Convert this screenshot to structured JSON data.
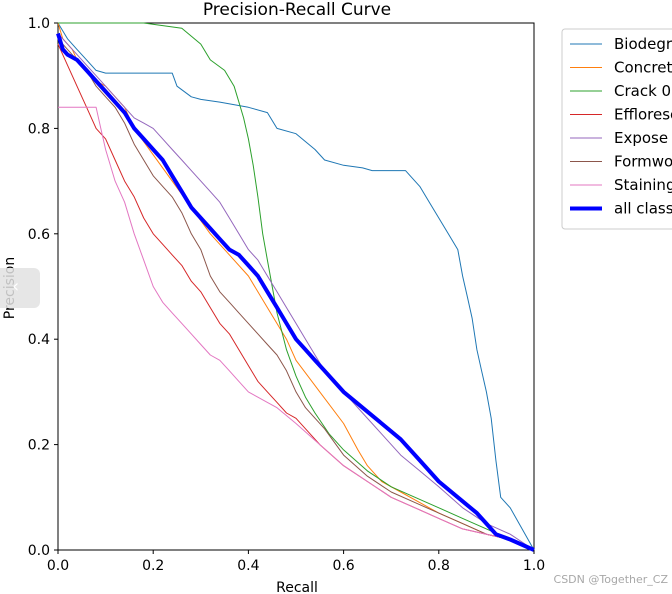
{
  "chart_data": {
    "type": "line",
    "title": "Precision-Recall Curve",
    "xlabel": "Recall",
    "ylabel": "Precision",
    "xlim": [
      0,
      1
    ],
    "ylim": [
      0,
      1
    ],
    "xticks": [
      "0.0",
      "0.2",
      "0.4",
      "0.6",
      "0.8",
      "1.0"
    ],
    "yticks": [
      "0.0",
      "0.2",
      "0.4",
      "0.6",
      "0.8",
      "1.0"
    ],
    "legend_position": "upper-right-outside",
    "series": [
      {
        "name": "Biodegr",
        "color": "#1f77b4",
        "width": 1,
        "x": [
          0,
          0.02,
          0.04,
          0.06,
          0.08,
          0.1,
          0.12,
          0.24,
          0.25,
          0.28,
          0.3,
          0.34,
          0.4,
          0.44,
          0.46,
          0.5,
          0.54,
          0.56,
          0.6,
          0.64,
          0.66,
          0.7,
          0.73,
          0.74,
          0.76,
          0.78,
          0.8,
          0.82,
          0.84,
          0.85,
          0.86,
          0.87,
          0.88,
          0.89,
          0.9,
          0.91,
          0.92,
          0.93,
          0.95,
          1.0
        ],
        "y": [
          1.0,
          0.97,
          0.95,
          0.93,
          0.91,
          0.905,
          0.905,
          0.905,
          0.88,
          0.86,
          0.855,
          0.85,
          0.84,
          0.83,
          0.8,
          0.79,
          0.76,
          0.74,
          0.73,
          0.725,
          0.72,
          0.72,
          0.72,
          0.71,
          0.69,
          0.66,
          0.63,
          0.6,
          0.57,
          0.52,
          0.48,
          0.44,
          0.38,
          0.34,
          0.3,
          0.25,
          0.17,
          0.1,
          0.08,
          0.0
        ]
      },
      {
        "name": "Concret",
        "color": "#ff7f0e",
        "width": 1,
        "x": [
          0,
          0.01,
          0.03,
          0.04,
          0.06,
          0.08,
          0.1,
          0.14,
          0.16,
          0.2,
          0.24,
          0.28,
          0.32,
          0.36,
          0.4,
          0.44,
          0.48,
          0.5,
          0.55,
          0.6,
          0.63,
          0.65,
          0.68,
          0.72,
          0.76,
          0.8,
          0.85,
          0.9,
          0.95,
          1.0
        ],
        "y": [
          1.0,
          0.97,
          0.95,
          0.93,
          0.91,
          0.89,
          0.88,
          0.84,
          0.8,
          0.75,
          0.7,
          0.65,
          0.6,
          0.56,
          0.52,
          0.46,
          0.4,
          0.36,
          0.3,
          0.24,
          0.19,
          0.16,
          0.13,
          0.11,
          0.09,
          0.07,
          0.05,
          0.03,
          0.02,
          0.0
        ]
      },
      {
        "name": "Crack 0",
        "color": "#2ca02c",
        "width": 1,
        "x": [
          0,
          0.18,
          0.26,
          0.3,
          0.32,
          0.35,
          0.37,
          0.38,
          0.39,
          0.4,
          0.41,
          0.42,
          0.43,
          0.44,
          0.45,
          0.46,
          0.48,
          0.5,
          0.52,
          0.54,
          0.57,
          0.6,
          0.65,
          0.7,
          0.75,
          0.8,
          0.85,
          0.9,
          0.95,
          1.0
        ],
        "y": [
          1.0,
          1.0,
          0.99,
          0.96,
          0.93,
          0.91,
          0.88,
          0.85,
          0.82,
          0.78,
          0.73,
          0.67,
          0.6,
          0.55,
          0.5,
          0.45,
          0.38,
          0.33,
          0.29,
          0.26,
          0.22,
          0.19,
          0.15,
          0.12,
          0.1,
          0.08,
          0.06,
          0.04,
          0.02,
          0.0
        ]
      },
      {
        "name": "Effloresc",
        "color": "#d62728",
        "width": 1,
        "x": [
          0,
          0.02,
          0.04,
          0.06,
          0.08,
          0.1,
          0.12,
          0.14,
          0.16,
          0.18,
          0.2,
          0.22,
          0.24,
          0.26,
          0.28,
          0.3,
          0.32,
          0.34,
          0.36,
          0.38,
          0.4,
          0.42,
          0.44,
          0.46,
          0.48,
          0.5,
          0.55,
          0.6,
          0.65,
          0.7,
          0.75,
          0.8,
          0.85,
          0.9,
          0.95,
          1.0
        ],
        "y": [
          0.96,
          0.92,
          0.88,
          0.84,
          0.8,
          0.78,
          0.74,
          0.7,
          0.67,
          0.63,
          0.6,
          0.58,
          0.56,
          0.54,
          0.51,
          0.49,
          0.46,
          0.43,
          0.41,
          0.38,
          0.35,
          0.32,
          0.3,
          0.28,
          0.26,
          0.25,
          0.2,
          0.16,
          0.13,
          0.1,
          0.08,
          0.06,
          0.04,
          0.03,
          0.02,
          0.0
        ]
      },
      {
        "name": "Expose",
        "color": "#9467bd",
        "width": 1,
        "x": [
          0,
          0.02,
          0.04,
          0.06,
          0.08,
          0.1,
          0.12,
          0.14,
          0.16,
          0.18,
          0.2,
          0.22,
          0.24,
          0.26,
          0.28,
          0.3,
          0.32,
          0.34,
          0.36,
          0.38,
          0.4,
          0.42,
          0.44,
          0.46,
          0.48,
          0.5,
          0.52,
          0.54,
          0.56,
          0.6,
          0.64,
          0.68,
          0.72,
          0.76,
          0.8,
          0.85,
          0.9,
          0.95,
          1.0
        ],
        "y": [
          0.98,
          0.96,
          0.94,
          0.92,
          0.9,
          0.88,
          0.86,
          0.84,
          0.82,
          0.81,
          0.8,
          0.78,
          0.76,
          0.74,
          0.72,
          0.7,
          0.68,
          0.66,
          0.63,
          0.6,
          0.57,
          0.55,
          0.52,
          0.49,
          0.46,
          0.43,
          0.4,
          0.37,
          0.34,
          0.3,
          0.26,
          0.22,
          0.18,
          0.15,
          0.12,
          0.08,
          0.05,
          0.03,
          0.0
        ]
      },
      {
        "name": "Formwo",
        "color": "#8c564b",
        "width": 1,
        "x": [
          0,
          0.02,
          0.04,
          0.06,
          0.08,
          0.1,
          0.12,
          0.14,
          0.16,
          0.18,
          0.2,
          0.22,
          0.24,
          0.26,
          0.28,
          0.3,
          0.32,
          0.34,
          0.36,
          0.38,
          0.4,
          0.42,
          0.44,
          0.46,
          0.48,
          0.5,
          0.52,
          0.56,
          0.6,
          0.65,
          0.7,
          0.75,
          0.8,
          0.85,
          0.9,
          0.95,
          1.0
        ],
        "y": [
          0.97,
          0.95,
          0.93,
          0.91,
          0.88,
          0.86,
          0.84,
          0.81,
          0.77,
          0.74,
          0.71,
          0.69,
          0.67,
          0.64,
          0.6,
          0.57,
          0.52,
          0.49,
          0.47,
          0.45,
          0.43,
          0.41,
          0.39,
          0.37,
          0.34,
          0.3,
          0.27,
          0.23,
          0.18,
          0.14,
          0.11,
          0.09,
          0.07,
          0.05,
          0.03,
          0.02,
          0.0
        ]
      },
      {
        "name": "Staining",
        "color": "#e377c2",
        "width": 1,
        "x": [
          0,
          0.05,
          0.08,
          0.09,
          0.1,
          0.12,
          0.14,
          0.16,
          0.18,
          0.2,
          0.22,
          0.24,
          0.26,
          0.28,
          0.3,
          0.32,
          0.34,
          0.36,
          0.38,
          0.4,
          0.42,
          0.44,
          0.46,
          0.5,
          0.55,
          0.6,
          0.65,
          0.7,
          0.75,
          0.8,
          0.85,
          0.9,
          0.95,
          1.0
        ],
        "y": [
          0.84,
          0.84,
          0.84,
          0.8,
          0.76,
          0.7,
          0.66,
          0.6,
          0.55,
          0.5,
          0.47,
          0.45,
          0.43,
          0.41,
          0.39,
          0.37,
          0.36,
          0.34,
          0.32,
          0.3,
          0.29,
          0.28,
          0.27,
          0.24,
          0.2,
          0.16,
          0.13,
          0.1,
          0.08,
          0.06,
          0.04,
          0.03,
          0.02,
          0.0
        ]
      },
      {
        "name": "all class",
        "color": "#0000ff",
        "width": 4,
        "x": [
          0,
          0.01,
          0.02,
          0.04,
          0.06,
          0.08,
          0.1,
          0.12,
          0.14,
          0.16,
          0.18,
          0.2,
          0.22,
          0.24,
          0.26,
          0.28,
          0.3,
          0.32,
          0.34,
          0.36,
          0.38,
          0.4,
          0.42,
          0.44,
          0.46,
          0.48,
          0.5,
          0.52,
          0.54,
          0.56,
          0.6,
          0.64,
          0.68,
          0.72,
          0.76,
          0.8,
          0.84,
          0.88,
          0.9,
          0.92,
          0.95,
          1.0
        ],
        "y": [
          0.98,
          0.95,
          0.94,
          0.93,
          0.91,
          0.89,
          0.87,
          0.85,
          0.83,
          0.8,
          0.78,
          0.76,
          0.74,
          0.71,
          0.68,
          0.65,
          0.63,
          0.61,
          0.59,
          0.57,
          0.56,
          0.54,
          0.52,
          0.49,
          0.46,
          0.43,
          0.4,
          0.38,
          0.36,
          0.34,
          0.3,
          0.27,
          0.24,
          0.21,
          0.17,
          0.13,
          0.1,
          0.07,
          0.05,
          0.03,
          0.02,
          0.0
        ]
      }
    ]
  },
  "watermark": "CSDN @Together_CZ",
  "side_tab_glyph": "‹"
}
